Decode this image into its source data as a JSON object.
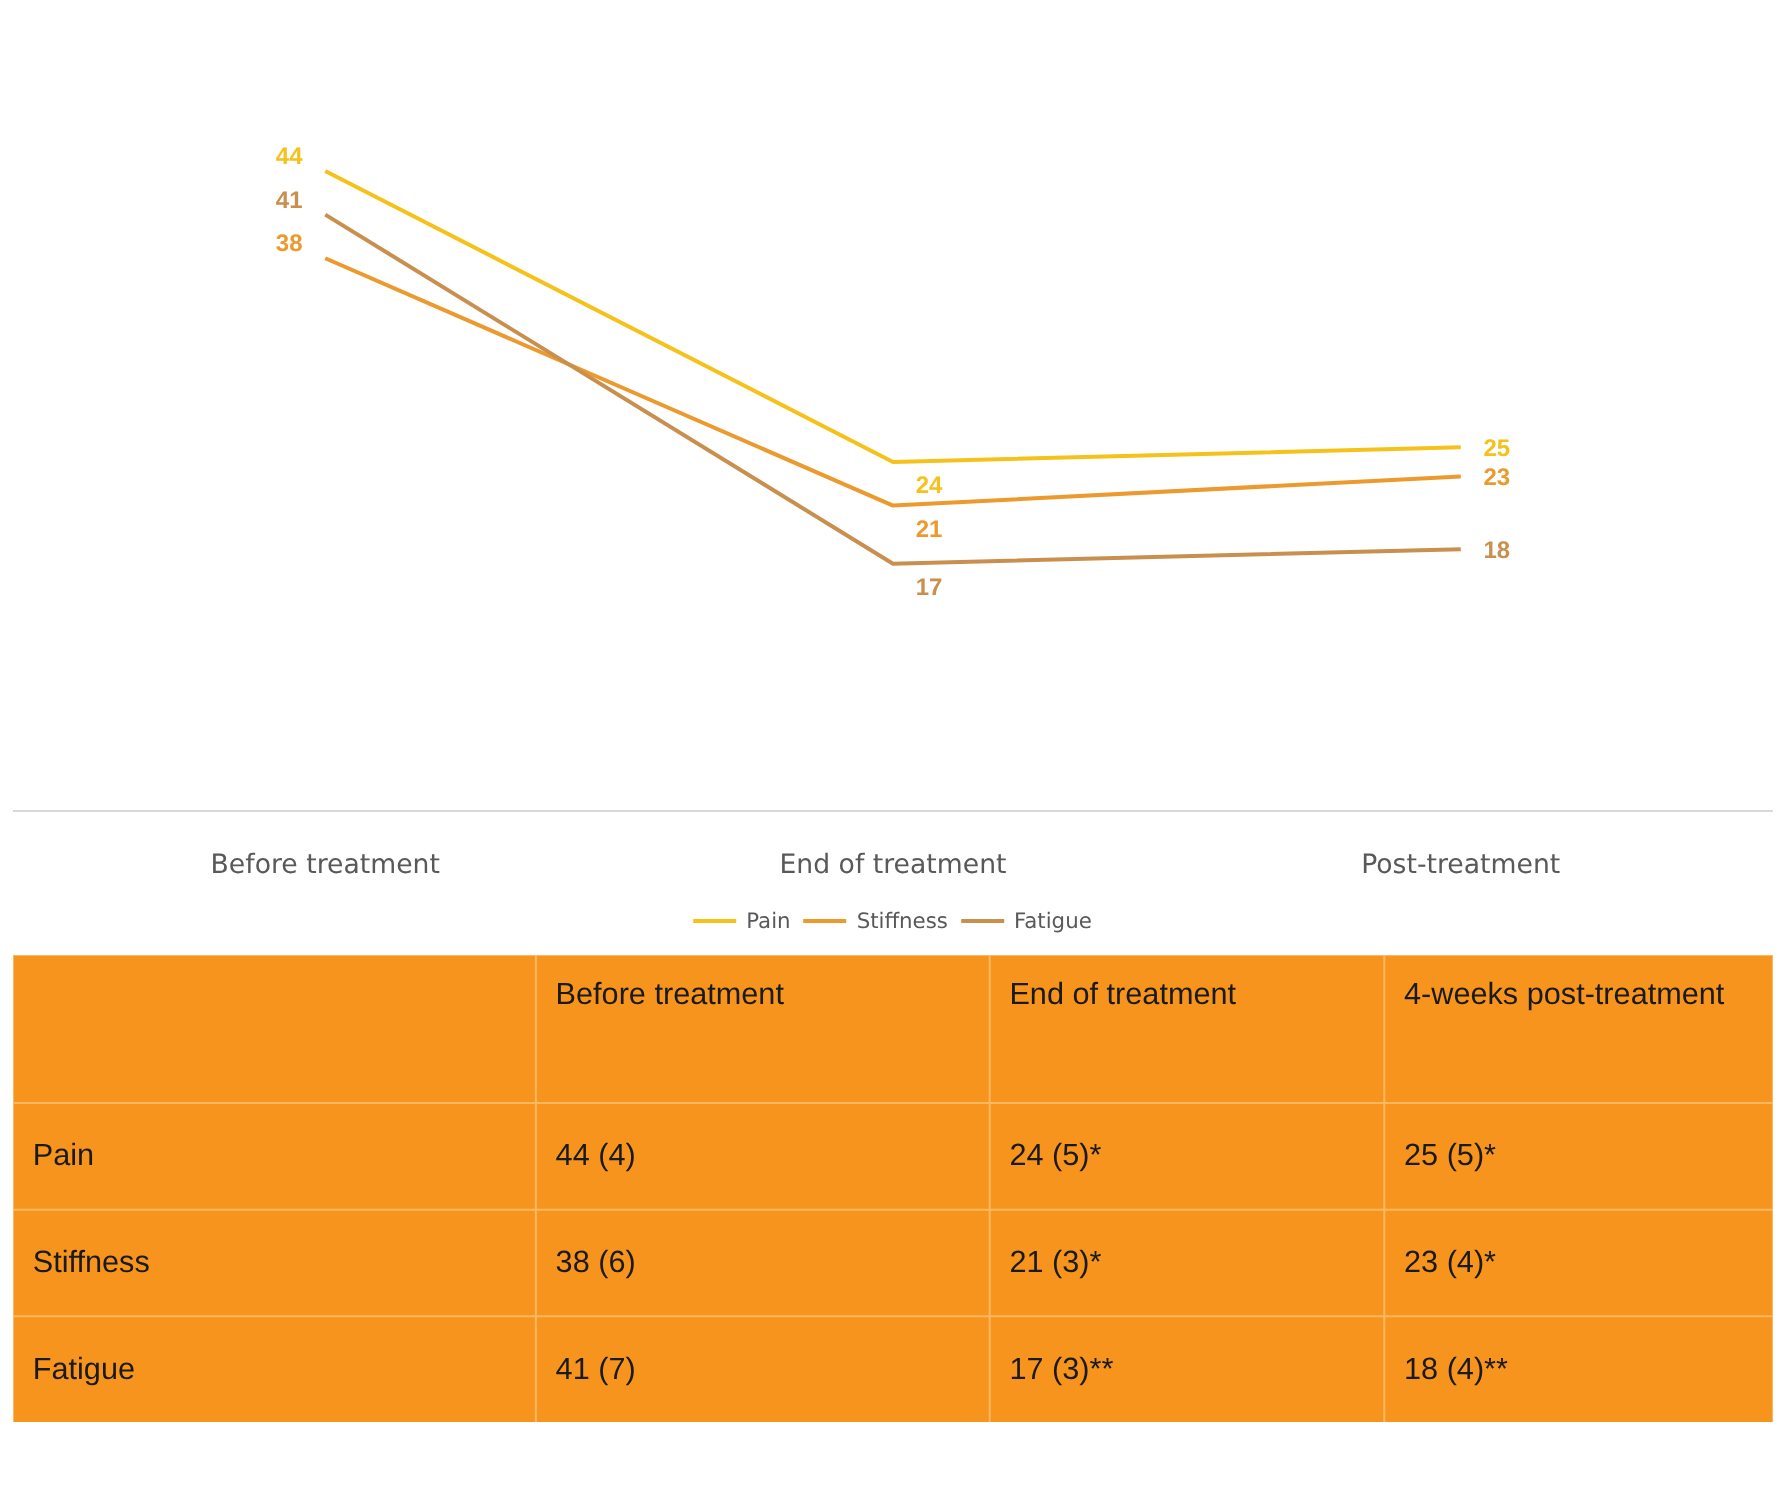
{
  "chart_data": [
    {
      "type": "line",
      "categories": [
        "Before treatment",
        "End of treatment",
        "Post-treatment"
      ],
      "series": [
        {
          "name": "Pain",
          "color": "#f5c21b",
          "values": [
            44,
            24,
            25
          ]
        },
        {
          "name": "Stiffness",
          "color": "#ec9a2e",
          "values": [
            38,
            21,
            23
          ]
        },
        {
          "name": "Fatigue",
          "color": "#c98f4e",
          "values": [
            41,
            17,
            18
          ]
        }
      ],
      "data_labels": true,
      "legend": "bottom",
      "grid": false,
      "marker": "none",
      "line_style": "solid"
    },
    {
      "type": "other",
      "annotations": [
        "Before treatment",
        "End of treatment",
        "4-weeks post-treatment",
        "Pain",
        "44 (4)",
        "24 (5)*",
        "25 (5)*",
        "Stiffness",
        "38 (6)",
        "21 (3)*",
        "23 (4)*",
        "Fatigue",
        "41 (7)",
        "17 (3)**",
        "18 (4)**"
      ]
    }
  ]
}
